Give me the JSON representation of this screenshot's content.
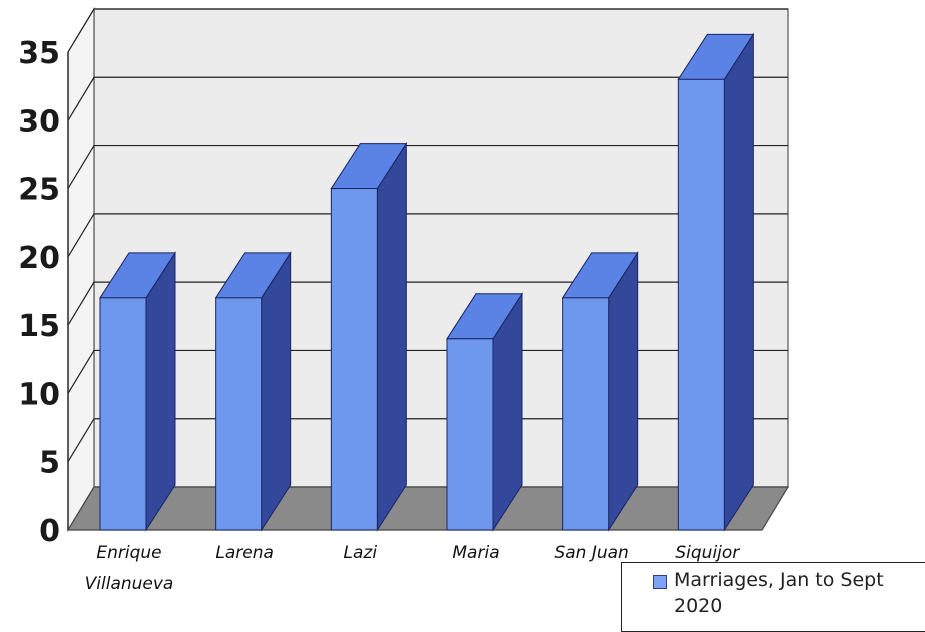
{
  "chart_data": {
    "type": "bar",
    "title": "",
    "xlabel": "",
    "ylabel": "",
    "categories": [
      "Enrique Villanueva",
      "Larena",
      "Lazi",
      "Maria",
      "San Juan",
      "Siquijor"
    ],
    "category_lines": [
      [
        "Enrique",
        "Villanueva"
      ],
      [
        "Larena"
      ],
      [
        "Lazi"
      ],
      [
        "Maria"
      ],
      [
        "San Juan"
      ],
      [
        "Siquijor"
      ]
    ],
    "series": [
      {
        "name": "Marriages, Jan to Sept 2020",
        "values": [
          17,
          17,
          25,
          14,
          17,
          33
        ]
      }
    ],
    "ylim": [
      0,
      35
    ],
    "yticks": [
      "0",
      "5",
      "10",
      "15",
      "20",
      "25",
      "30",
      "35"
    ],
    "grid": true,
    "three_d": true,
    "legend_position": "bottom-right",
    "colors": {
      "bar_front": "#6e98ee",
      "bar_top": "#5b83e6",
      "bar_side": "#33489b",
      "bar_outline": "#1a2560",
      "wall": "#ececec",
      "floor": "#8a8a8a"
    }
  }
}
